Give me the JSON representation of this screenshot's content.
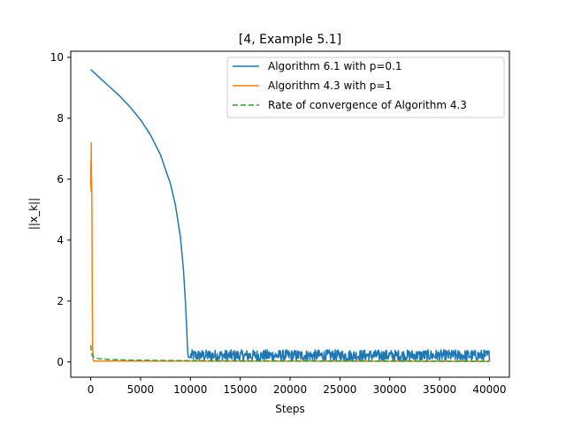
{
  "chart_data": {
    "type": "line",
    "title": "[4, Example 5.1]",
    "xlabel": "Steps",
    "ylabel": "||x_k||",
    "xlim": [
      -2000,
      42000
    ],
    "ylim": [
      -0.5,
      10.2
    ],
    "xticks": [
      0,
      5000,
      10000,
      15000,
      20000,
      25000,
      30000,
      35000,
      40000
    ],
    "yticks": [
      0,
      2,
      4,
      6,
      8,
      10
    ],
    "grid": false,
    "legend_position": "top-right",
    "series": [
      {
        "name": "Algorithm 6.1 with p=0.1",
        "color": "#1f77b4",
        "style": "solid",
        "x": [
          0,
          1000,
          2000,
          3000,
          4000,
          5000,
          6000,
          7000,
          8000,
          8500,
          9000,
          9300,
          9500,
          9600,
          9700,
          9750,
          9800,
          10000,
          40000
        ],
        "y": [
          9.6,
          9.3,
          9.0,
          8.7,
          8.35,
          7.95,
          7.45,
          6.8,
          5.85,
          5.15,
          4.1,
          3.05,
          2.0,
          1.3,
          0.55,
          0.25,
          0.15,
          0.15,
          0.15
        ],
        "noise_after_step": 10000,
        "noise_band": [
          0.02,
          0.4
        ]
      },
      {
        "name": "Algorithm 4.3 with p=1",
        "color": "#ff7f0e",
        "style": "solid",
        "x": [
          0,
          20,
          40,
          60,
          80,
          100,
          130,
          160,
          200,
          250,
          300,
          40000
        ],
        "y": [
          5.8,
          6.6,
          5.6,
          7.2,
          5.7,
          6.0,
          4.5,
          2.0,
          0.5,
          0.1,
          0.03,
          0.02
        ],
        "spike_x": 0,
        "spike_y": 7.2
      },
      {
        "name": "Rate of convergence of Algorithm 4.3",
        "color": "#2ca02c",
        "style": "dashed",
        "x": [
          0,
          100,
          200,
          500,
          1000,
          2000,
          4000,
          7000,
          10000,
          15000,
          20000,
          30000,
          40000
        ],
        "y": [
          0.55,
          0.3,
          0.18,
          0.13,
          0.1,
          0.08,
          0.06,
          0.05,
          0.04,
          0.035,
          0.03,
          0.025,
          0.02
        ]
      }
    ]
  }
}
